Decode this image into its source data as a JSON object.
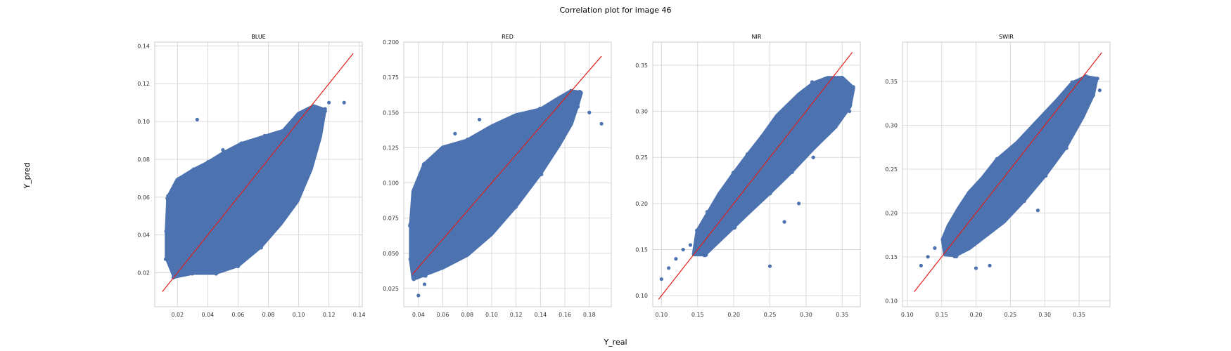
{
  "figure": {
    "title": "Correlation plot for image 46",
    "xlabel": "Y_real",
    "ylabel": "Y_pred"
  },
  "colors": {
    "points": "#4C72B0",
    "identity_line": "#e0201b",
    "grid": "#d9d9d9",
    "spine": "#cccccc"
  },
  "chart_data": [
    {
      "type": "scatter",
      "title": "BLUE",
      "xlim": [
        0.005,
        0.142
      ],
      "ylim": [
        0.002,
        0.142
      ],
      "xticks": [
        "0.02",
        "0.04",
        "0.06",
        "0.08",
        "0.10",
        "0.12",
        "0.14"
      ],
      "yticks": [
        "0.02",
        "0.04",
        "0.06",
        "0.08",
        "0.10",
        "0.12",
        "0.14"
      ],
      "identity_line": [
        [
          0.01,
          0.01
        ],
        [
          0.136,
          0.136
        ]
      ],
      "series": [
        {
          "values": [
            [
              0.02,
              0.02
            ],
            [
              0.03,
              0.05
            ],
            [
              0.05,
              0.03
            ],
            [
              0.07,
              0.05
            ],
            [
              0.06,
              0.07
            ],
            [
              0.08,
              0.06
            ],
            [
              0.09,
              0.09
            ],
            [
              0.1,
              0.1
            ],
            [
              0.12,
              0.11
            ],
            [
              0.13,
              0.11
            ],
            [
              0.11,
              0.09
            ],
            [
              0.09,
              0.08
            ],
            [
              0.04,
              0.04
            ],
            [
              0.033,
              0.101
            ],
            [
              0.05,
              0.085
            ],
            [
              0.03,
              0.065
            ],
            [
              0.065,
              0.035
            ],
            [
              0.085,
              0.05
            ]
          ],
          "cloud": [
            [
              0.013,
              0.028
            ],
            [
              0.018,
              0.018
            ],
            [
              0.03,
              0.02
            ],
            [
              0.045,
              0.02
            ],
            [
              0.06,
              0.024
            ],
            [
              0.075,
              0.034
            ],
            [
              0.088,
              0.046
            ],
            [
              0.099,
              0.058
            ],
            [
              0.108,
              0.075
            ],
            [
              0.114,
              0.092
            ],
            [
              0.117,
              0.106
            ],
            [
              0.11,
              0.108
            ],
            [
              0.1,
              0.104
            ],
            [
              0.09,
              0.095
            ],
            [
              0.078,
              0.092
            ],
            [
              0.062,
              0.088
            ],
            [
              0.05,
              0.083
            ],
            [
              0.04,
              0.078
            ],
            [
              0.03,
              0.074
            ],
            [
              0.02,
              0.069
            ],
            [
              0.014,
              0.06
            ],
            [
              0.013,
              0.042
            ]
          ]
        }
      ]
    },
    {
      "type": "scatter",
      "title": "RED",
      "xlim": [
        0.028,
        0.198
      ],
      "ylim": [
        0.012,
        0.2
      ],
      "xticks": [
        "0.04",
        "0.06",
        "0.08",
        "0.10",
        "0.12",
        "0.14",
        "0.16",
        "0.18"
      ],
      "yticks": [
        "0.025",
        "0.050",
        "0.075",
        "0.100",
        "0.125",
        "0.150",
        "0.175",
        "0.200"
      ],
      "identity_line": [
        [
          0.035,
          0.035
        ],
        [
          0.19,
          0.19
        ]
      ],
      "series": [
        {
          "values": [
            [
              0.04,
              0.05
            ],
            [
              0.06,
              0.07
            ],
            [
              0.08,
              0.09
            ],
            [
              0.1,
              0.1
            ],
            [
              0.12,
              0.11
            ],
            [
              0.14,
              0.13
            ],
            [
              0.16,
              0.155
            ],
            [
              0.17,
              0.16
            ],
            [
              0.18,
              0.15
            ],
            [
              0.19,
              0.142
            ],
            [
              0.04,
              0.02
            ],
            [
              0.07,
              0.135
            ],
            [
              0.09,
              0.145
            ],
            [
              0.06,
              0.115
            ],
            [
              0.11,
              0.075
            ],
            [
              0.045,
              0.028
            ]
          ],
          "cloud": [
            [
              0.034,
              0.045
            ],
            [
              0.036,
              0.032
            ],
            [
              0.045,
              0.035
            ],
            [
              0.06,
              0.04
            ],
            [
              0.08,
              0.049
            ],
            [
              0.1,
              0.064
            ],
            [
              0.12,
              0.084
            ],
            [
              0.14,
              0.107
            ],
            [
              0.155,
              0.127
            ],
            [
              0.165,
              0.142
            ],
            [
              0.17,
              0.155
            ],
            [
              0.173,
              0.164
            ],
            [
              0.165,
              0.165
            ],
            [
              0.155,
              0.16
            ],
            [
              0.14,
              0.152
            ],
            [
              0.12,
              0.148
            ],
            [
              0.1,
              0.14
            ],
            [
              0.08,
              0.13
            ],
            [
              0.06,
              0.125
            ],
            [
              0.045,
              0.113
            ],
            [
              0.036,
              0.094
            ],
            [
              0.034,
              0.07
            ]
          ]
        }
      ]
    },
    {
      "type": "scatter",
      "title": "NIR",
      "xlim": [
        0.088,
        0.375
      ],
      "ylim": [
        0.088,
        0.375
      ],
      "xticks": [
        "0.10",
        "0.15",
        "0.20",
        "0.25",
        "0.30",
        "0.35"
      ],
      "yticks": [
        "0.10",
        "0.15",
        "0.20",
        "0.25",
        "0.30",
        "0.35"
      ],
      "identity_line": [
        [
          0.096,
          0.096
        ],
        [
          0.364,
          0.364
        ]
      ],
      "series": [
        {
          "values": [
            [
              0.1,
              0.118
            ],
            [
              0.11,
              0.13
            ],
            [
              0.12,
              0.14
            ],
            [
              0.13,
              0.15
            ],
            [
              0.14,
              0.155
            ],
            [
              0.25,
              0.132
            ],
            [
              0.27,
              0.18
            ],
            [
              0.29,
              0.2
            ],
            [
              0.36,
              0.3
            ],
            [
              0.21,
              0.19
            ],
            [
              0.31,
              0.25
            ]
          ],
          "cloud": [
            [
              0.145,
              0.145
            ],
            [
              0.16,
              0.145
            ],
            [
              0.18,
              0.16
            ],
            [
              0.2,
              0.175
            ],
            [
              0.22,
              0.19
            ],
            [
              0.25,
              0.212
            ],
            [
              0.28,
              0.235
            ],
            [
              0.31,
              0.26
            ],
            [
              0.34,
              0.283
            ],
            [
              0.36,
              0.305
            ],
            [
              0.365,
              0.325
            ],
            [
              0.35,
              0.336
            ],
            [
              0.33,
              0.336
            ],
            [
              0.31,
              0.33
            ],
            [
              0.29,
              0.318
            ],
            [
              0.26,
              0.295
            ],
            [
              0.24,
              0.273
            ],
            [
              0.22,
              0.253
            ],
            [
              0.2,
              0.232
            ],
            [
              0.18,
              0.21
            ],
            [
              0.165,
              0.19
            ],
            [
              0.15,
              0.17
            ]
          ]
        }
      ]
    },
    {
      "type": "scatter",
      "title": "SWIR",
      "xlim": [
        0.093,
        0.395
      ],
      "ylim": [
        0.093,
        0.395
      ],
      "xticks": [
        "0.10",
        "0.15",
        "0.20",
        "0.25",
        "0.30",
        "0.35"
      ],
      "yticks": [
        "0.10",
        "0.15",
        "0.20",
        "0.25",
        "0.30",
        "0.35"
      ],
      "identity_line": [
        [
          0.11,
          0.11
        ],
        [
          0.383,
          0.383
        ]
      ],
      "series": [
        {
          "values": [
            [
              0.12,
              0.14
            ],
            [
              0.13,
              0.15
            ],
            [
              0.14,
              0.16
            ],
            [
              0.2,
              0.137
            ],
            [
              0.22,
              0.14
            ],
            [
              0.29,
              0.203
            ],
            [
              0.37,
              0.35
            ],
            [
              0.38,
              0.34
            ],
            [
              0.36,
              0.33
            ],
            [
              0.33,
              0.3
            ]
          ],
          "cloud": [
            [
              0.155,
              0.153
            ],
            [
              0.17,
              0.152
            ],
            [
              0.19,
              0.16
            ],
            [
              0.21,
              0.172
            ],
            [
              0.24,
              0.19
            ],
            [
              0.27,
              0.215
            ],
            [
              0.3,
              0.243
            ],
            [
              0.33,
              0.275
            ],
            [
              0.355,
              0.31
            ],
            [
              0.37,
              0.335
            ],
            [
              0.375,
              0.353
            ],
            [
              0.36,
              0.355
            ],
            [
              0.34,
              0.348
            ],
            [
              0.32,
              0.33
            ],
            [
              0.29,
              0.305
            ],
            [
              0.26,
              0.28
            ],
            [
              0.23,
              0.26
            ],
            [
              0.21,
              0.24
            ],
            [
              0.19,
              0.223
            ],
            [
              0.175,
              0.205
            ],
            [
              0.16,
              0.185
            ],
            [
              0.152,
              0.17
            ]
          ]
        }
      ]
    }
  ]
}
